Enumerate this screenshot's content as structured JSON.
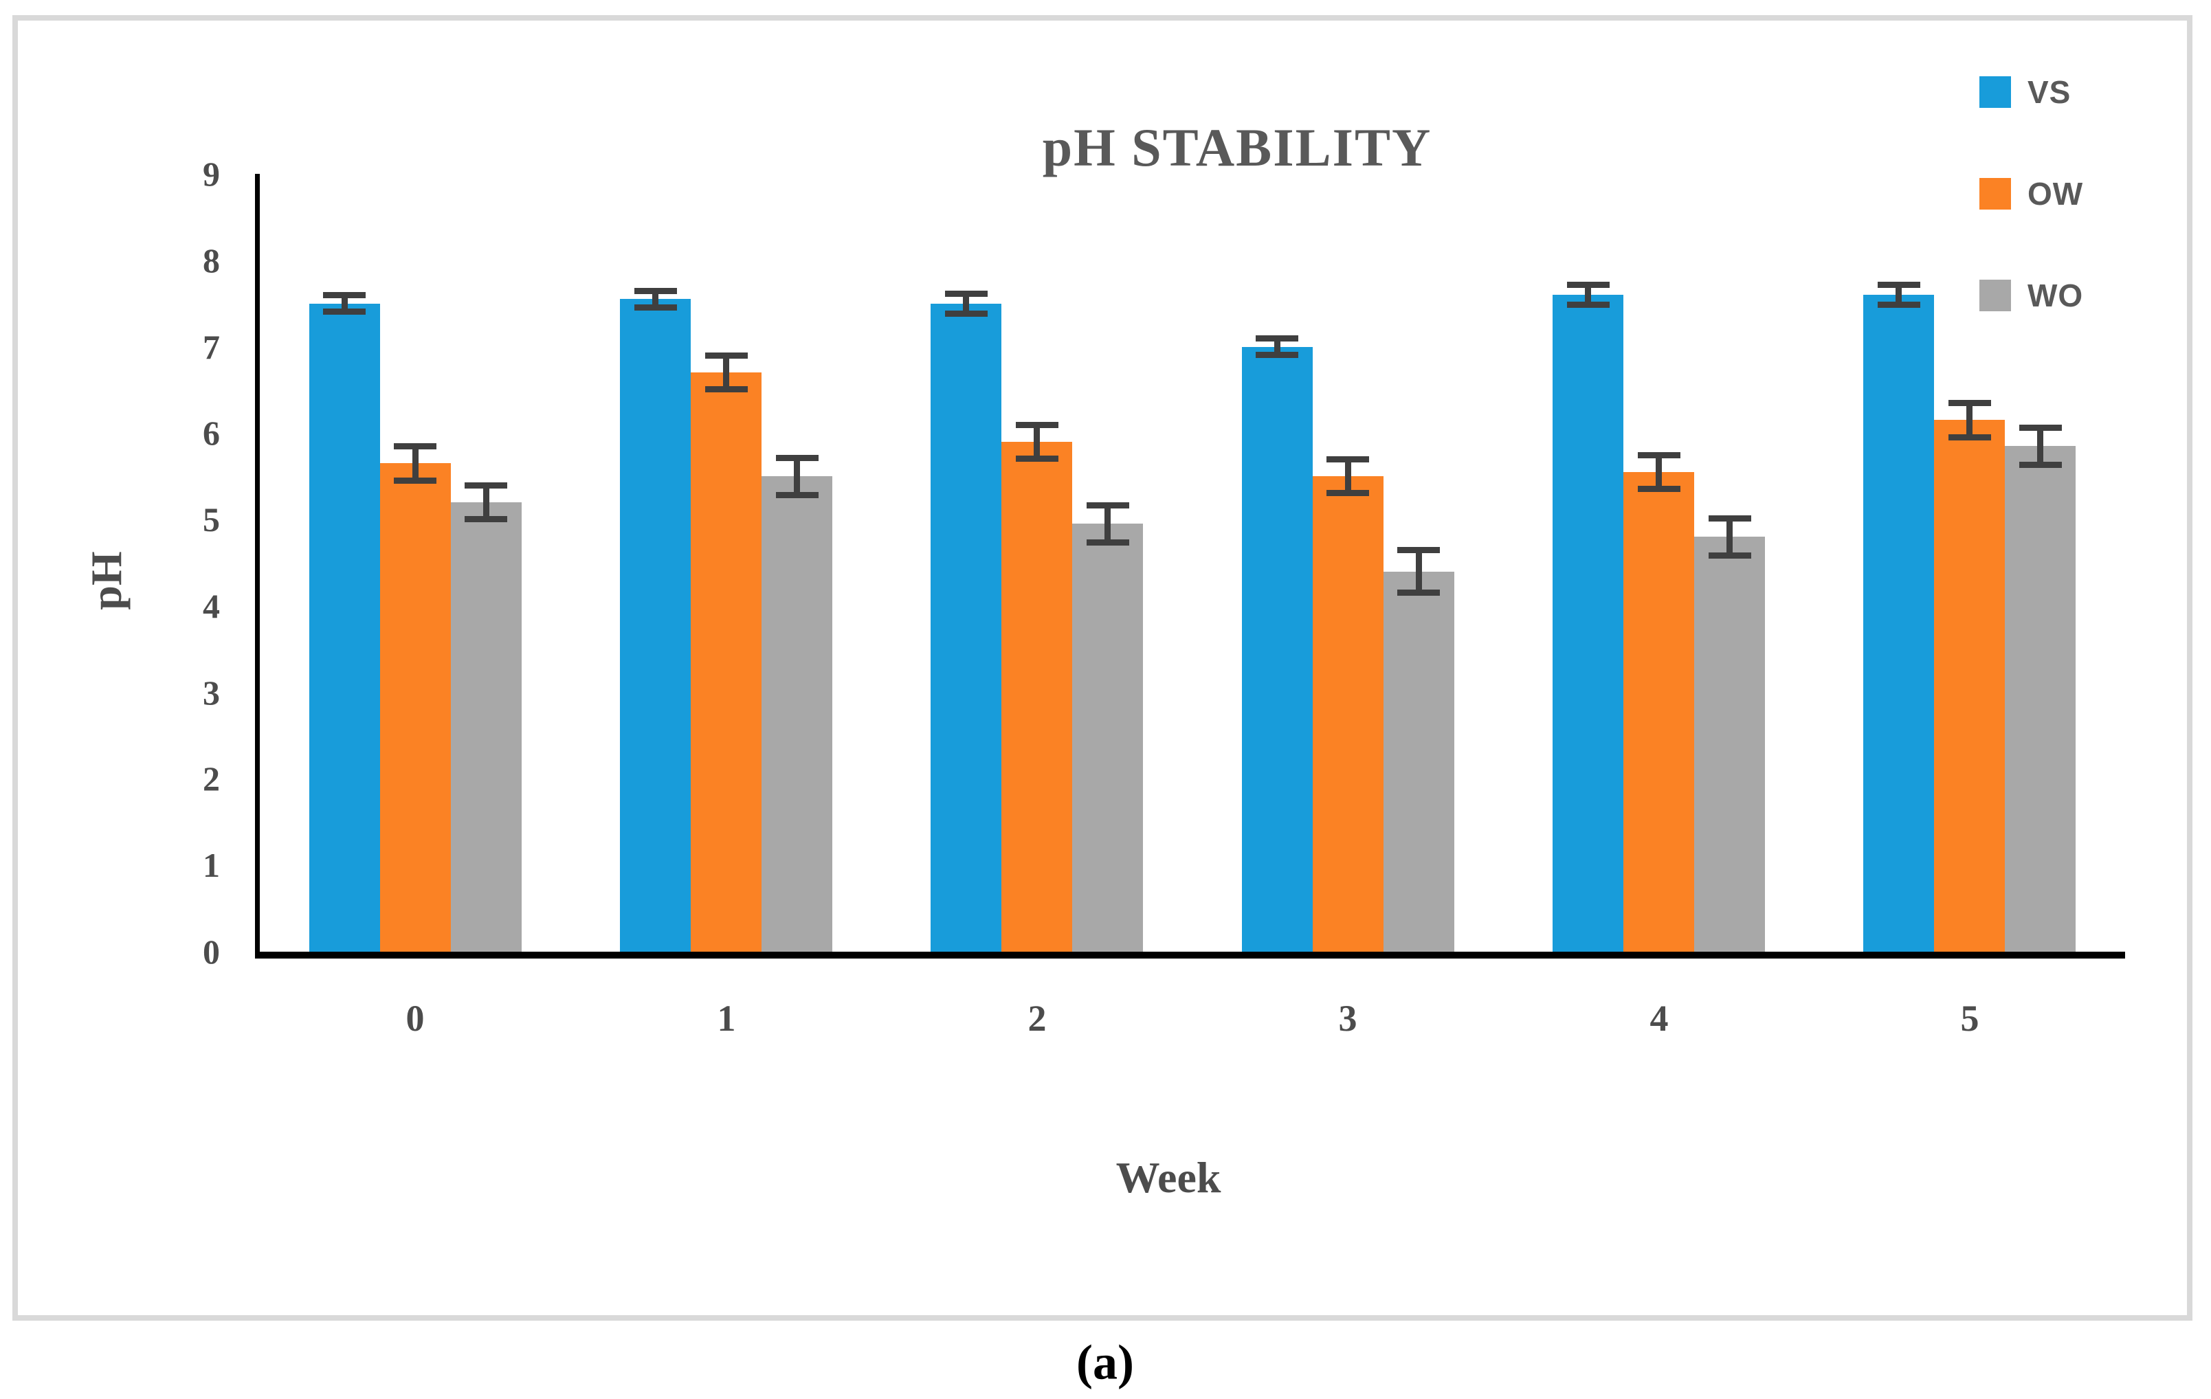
{
  "figure": {
    "title": "pH STABILITY",
    "y_axis_label": "pH",
    "x_axis_label": "Week",
    "caption": "(a)"
  },
  "chart_data": {
    "type": "bar",
    "title": "pH STABILITY",
    "xlabel": "Week",
    "ylabel": "pH",
    "categories": [
      "0",
      "1",
      "2",
      "3",
      "4",
      "5"
    ],
    "series": [
      {
        "name": "VS",
        "color": "#189cda",
        "values": [
          7.5,
          7.55,
          7.5,
          7.0,
          7.6,
          7.6
        ],
        "errors": [
          0.1,
          0.1,
          0.12,
          0.1,
          0.12,
          0.12
        ]
      },
      {
        "name": "OW",
        "color": "#fb8224",
        "values": [
          5.65,
          6.7,
          5.9,
          5.5,
          5.55,
          6.15
        ],
        "errors": [
          0.2,
          0.2,
          0.2,
          0.2,
          0.2,
          0.2
        ]
      },
      {
        "name": "WO",
        "color": "#a8a8a8",
        "values": [
          5.2,
          5.5,
          4.95,
          4.4,
          4.8,
          5.85
        ],
        "errors": [
          0.2,
          0.22,
          0.22,
          0.25,
          0.22,
          0.22
        ]
      }
    ],
    "ylim": [
      0,
      9
    ],
    "y_ticks": [
      0,
      1,
      2,
      3,
      4,
      5,
      6,
      7,
      8,
      9
    ],
    "grid": false,
    "legend_position": "top-right",
    "error_bars": true,
    "error_bar_color": "#3f3f3f",
    "axis_color": "#000000",
    "panel_border_color": "#d9d9d9",
    "text_color": "#595959"
  }
}
